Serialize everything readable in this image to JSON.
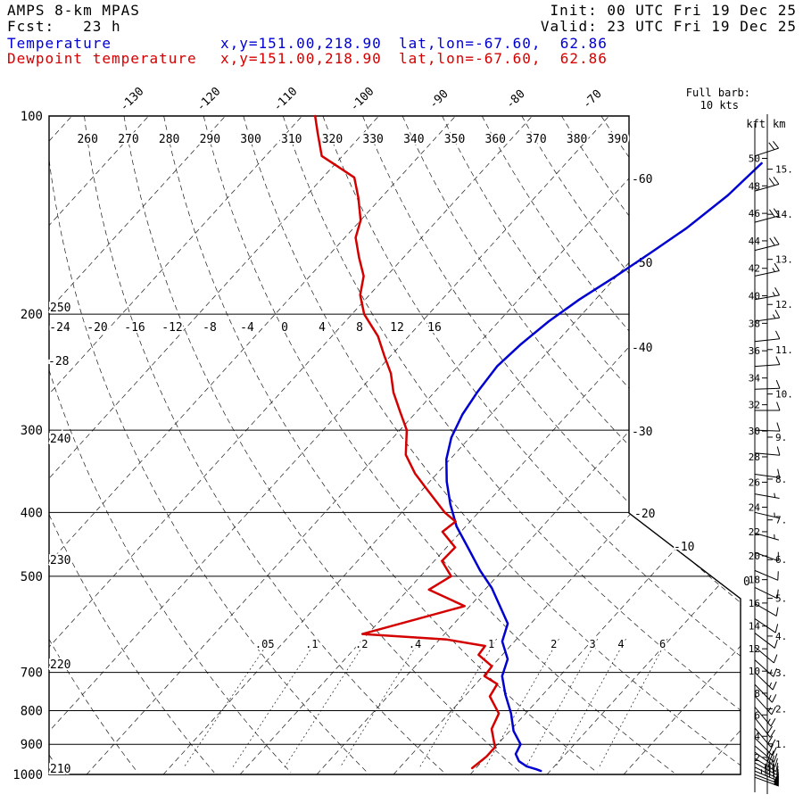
{
  "header": {
    "model": "AMPS 8-km MPAS",
    "fcst": "Fcst:   23 h",
    "init": "Init: 00 UTC Fri 19 Dec 25",
    "valid": "Valid: 23 UTC Fri 19 Dec 25"
  },
  "legend": {
    "temperature": {
      "label": "Temperature",
      "xy": "x,y=151.00,218.90",
      "latlon": "lat,lon=-67.60,  62.86",
      "color": "#0000d0"
    },
    "dewpoint": {
      "label": "Dewpoint temperature",
      "xy": "x,y=151.00,218.90",
      "latlon": "lat,lon=-67.60,  62.86",
      "color": "#d40000"
    }
  },
  "barb_note": {
    "line1": "Full barb:",
    "line2": "10 kts"
  },
  "axes": {
    "pressure_unit": "hPa",
    "pressure_ticks": [
      100,
      200,
      300,
      400,
      500,
      700,
      800,
      900,
      1000
    ],
    "isobar_lines": [
      200,
      300,
      400,
      500,
      700,
      800,
      900
    ],
    "top_isotherm_labels": [
      -130,
      -120,
      -110,
      -100,
      -90,
      -80,
      -70
    ],
    "right_isotherm_labels": [
      -60,
      -50,
      -40,
      -30,
      -20,
      -10,
      0
    ],
    "row200_labels": [
      -24,
      -20,
      -16,
      -12,
      -8,
      -4,
      0,
      4,
      8,
      12,
      16
    ],
    "theta_top_labels": [
      260,
      270,
      280,
      290,
      300,
      310,
      320,
      330,
      340,
      350,
      360,
      370,
      380,
      390
    ],
    "theta_left_labels": [
      250,
      240,
      230,
      220,
      210
    ],
    "left_misc_label": "-28",
    "mixing_ratio_labels": [
      {
        "label": ".05",
        "value": 0.05
      },
      {
        "label": ".1",
        "value": 0.1
      },
      {
        "label": ".2",
        "value": 0.2
      },
      {
        "label": ".4",
        "value": 0.4
      },
      {
        "label": "1",
        "value": 1
      },
      {
        "label": "2",
        "value": 2
      },
      {
        "label": "3",
        "value": 3
      },
      {
        "label": "4",
        "value": 4
      },
      {
        "label": "6",
        "value": 6
      }
    ],
    "kft_header": "kft",
    "km_header": "km",
    "kft_ticks": [
      2,
      4,
      6,
      8,
      10,
      12,
      14,
      16,
      18,
      20,
      22,
      24,
      26,
      28,
      30,
      32,
      34,
      36,
      38,
      40,
      42,
      44,
      46,
      48,
      50
    ],
    "km_ticks": [
      1,
      2,
      3,
      4,
      5,
      6,
      7,
      8,
      9,
      10,
      11,
      12,
      13,
      14,
      15
    ]
  },
  "chart_data": {
    "type": "skewt-logp",
    "title": "AMPS 8-km MPAS sounding, Fcst 23 h, Valid 23 UTC Fri 19 Dec 25",
    "pressure_axis": {
      "unit": "hPa",
      "top": 100,
      "bottom": 1000,
      "scale": "log"
    },
    "temperature_axis": {
      "unit": "degC",
      "isotherm_interval": 10,
      "skew": true
    },
    "series": [
      {
        "name": "Temperature",
        "color": "#0000d0",
        "points": [
          [
            118,
            -44.5
          ],
          [
            132,
            -45.1
          ],
          [
            148,
            -46.6
          ],
          [
            161,
            -48.3
          ],
          [
            175,
            -50.1
          ],
          [
            190,
            -52.1
          ],
          [
            205,
            -53.5
          ],
          [
            222,
            -54.4
          ],
          [
            240,
            -54.9
          ],
          [
            263,
            -54.4
          ],
          [
            284,
            -53.7
          ],
          [
            308,
            -52.4
          ],
          [
            332,
            -50.5
          ],
          [
            359,
            -47.8
          ],
          [
            389,
            -44.6
          ],
          [
            420,
            -41.2
          ],
          [
            454,
            -37.0
          ],
          [
            490,
            -32.9
          ],
          [
            521,
            -29.3
          ],
          [
            555,
            -26.1
          ],
          [
            590,
            -23.0
          ],
          [
            628,
            -21.6
          ],
          [
            668,
            -18.8
          ],
          [
            709,
            -17.5
          ],
          [
            756,
            -14.9
          ],
          [
            808,
            -11.9
          ],
          [
            859,
            -9.5
          ],
          [
            900,
            -7.0
          ],
          [
            931,
            -6.5
          ],
          [
            955,
            -5.2
          ],
          [
            972,
            -3.6
          ],
          [
            982,
            -2.0
          ],
          [
            988,
            -1.2
          ]
        ]
      },
      {
        "name": "Dewpoint temperature",
        "color": "#d40000",
        "points": [
          [
            100,
            -108.3
          ],
          [
            106,
            -106.0
          ],
          [
            115,
            -102.7
          ],
          [
            124,
            -95.9
          ],
          [
            133,
            -93.0
          ],
          [
            144,
            -90.0
          ],
          [
            153,
            -88.6
          ],
          [
            164,
            -85.8
          ],
          [
            175,
            -83.0
          ],
          [
            187,
            -81.2
          ],
          [
            200,
            -78.4
          ],
          [
            216,
            -74.0
          ],
          [
            231,
            -70.9
          ],
          [
            246,
            -67.9
          ],
          [
            263,
            -65.3
          ],
          [
            281,
            -62.2
          ],
          [
            300,
            -59.1
          ],
          [
            327,
            -56.3
          ],
          [
            349,
            -52.9
          ],
          [
            371,
            -49.1
          ],
          [
            400,
            -44.4
          ],
          [
            413,
            -41.9
          ],
          [
            428,
            -42.4
          ],
          [
            452,
            -38.9
          ],
          [
            474,
            -39.0
          ],
          [
            500,
            -36.0
          ],
          [
            524,
            -37.3
          ],
          [
            555,
            -30.7
          ],
          [
            612,
            -40.7
          ],
          [
            624,
            -29.0
          ],
          [
            638,
            -23.3
          ],
          [
            658,
            -23.1
          ],
          [
            685,
            -20.0
          ],
          [
            709,
            -19.8
          ],
          [
            729,
            -17.2
          ],
          [
            761,
            -16.7
          ],
          [
            808,
            -13.5
          ],
          [
            853,
            -12.6
          ],
          [
            909,
            -10.0
          ],
          [
            939,
            -10.0
          ],
          [
            978,
            -10.5
          ]
        ]
      }
    ],
    "wind_barbs": {
      "unit": "kts",
      "full_barb": 10,
      "levels": [
        [
          100,
          70,
          25
        ],
        [
          115,
          72,
          22
        ],
        [
          130,
          74,
          20
        ],
        [
          145,
          75,
          18
        ],
        [
          160,
          76,
          18
        ],
        [
          175,
          78,
          15
        ],
        [
          190,
          80,
          15
        ],
        [
          205,
          82,
          15
        ],
        [
          220,
          84,
          12
        ],
        [
          240,
          86,
          12
        ],
        [
          260,
          88,
          10
        ],
        [
          280,
          90,
          10
        ],
        [
          300,
          92,
          10
        ],
        [
          325,
          95,
          8
        ],
        [
          350,
          98,
          8
        ],
        [
          375,
          100,
          7
        ],
        [
          400,
          103,
          7
        ],
        [
          430,
          106,
          7
        ],
        [
          460,
          110,
          8
        ],
        [
          490,
          113,
          8
        ],
        [
          520,
          116,
          9
        ],
        [
          550,
          120,
          10
        ],
        [
          580,
          124,
          10
        ],
        [
          610,
          127,
          12
        ],
        [
          640,
          130,
          12
        ],
        [
          670,
          132,
          13
        ],
        [
          700,
          134,
          13
        ],
        [
          730,
          136,
          15
        ],
        [
          760,
          138,
          15
        ],
        [
          790,
          140,
          17
        ],
        [
          820,
          142,
          18
        ],
        [
          850,
          140,
          20
        ],
        [
          880,
          135,
          22
        ],
        [
          905,
          130,
          25
        ],
        [
          925,
          126,
          28
        ],
        [
          945,
          122,
          32
        ],
        [
          960,
          119,
          35
        ],
        [
          975,
          116,
          40
        ],
        [
          988,
          113,
          45
        ],
        [
          1000,
          111,
          50
        ],
        [
          1010,
          110,
          50
        ]
      ]
    }
  }
}
